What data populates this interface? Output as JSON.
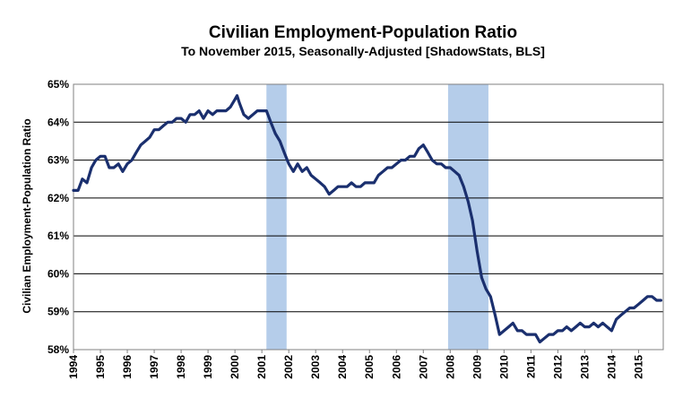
{
  "chart_data": {
    "type": "line",
    "title": "Civilian Employment-Population  Ratio",
    "subtitle": "To November 2015, Seasonally-Adjusted [ShadowStats, BLS]",
    "ylabel": "Civilian Employment-Population  Ratio",
    "xlabel": "",
    "xlim": [
      1994.0,
      2015.917
    ],
    "ylim": [
      58,
      65
    ],
    "y_ticks": [
      {
        "value": 58,
        "label": "58%"
      },
      {
        "value": 59,
        "label": "59%"
      },
      {
        "value": 60,
        "label": "60%"
      },
      {
        "value": 61,
        "label": "61%"
      },
      {
        "value": 62,
        "label": "62%"
      },
      {
        "value": 63,
        "label": "63%"
      },
      {
        "value": 64,
        "label": "64%"
      },
      {
        "value": 65,
        "label": "65%"
      }
    ],
    "x_ticks": [
      "1994",
      "1995",
      "1996",
      "1997",
      "1998",
      "1999",
      "2000",
      "2001",
      "2002",
      "2003",
      "2004",
      "2005",
      "2006",
      "2007",
      "2008",
      "2009",
      "2010",
      "2011",
      "2012",
      "2013",
      "2014",
      "2015"
    ],
    "grid": {
      "horizontal": true,
      "vertical": false
    },
    "legend": "none",
    "recessions": [
      {
        "start": 2001.17,
        "end": 2001.92
      },
      {
        "start": 2007.92,
        "end": 2009.42
      }
    ],
    "colors": {
      "line": "#1a2f6e",
      "recession": "#a8c4e6",
      "grid": "#000000",
      "frame": "#808080"
    },
    "series": [
      {
        "x": [
          1994.0,
          1994.17,
          1994.33,
          1994.5,
          1994.67,
          1994.83,
          1995.0,
          1995.17,
          1995.33,
          1995.5,
          1995.67,
          1995.83,
          1996.0,
          1996.17,
          1996.33,
          1996.5,
          1996.67,
          1996.83,
          1997.0,
          1997.17,
          1997.33,
          1997.5,
          1997.67,
          1997.83,
          1998.0,
          1998.17,
          1998.33,
          1998.5,
          1998.67,
          1998.83,
          1999.0,
          1999.17,
          1999.33,
          1999.5,
          1999.67,
          1999.83,
          2000.0,
          2000.08,
          2000.17,
          2000.33,
          2000.5,
          2000.67,
          2000.83,
          2001.0,
          2001.17,
          2001.33,
          2001.5,
          2001.67,
          2001.83,
          2002.0,
          2002.17,
          2002.33,
          2002.5,
          2002.67,
          2002.83,
          2003.0,
          2003.17,
          2003.33,
          2003.5,
          2003.67,
          2003.83,
          2004.0,
          2004.17,
          2004.33,
          2004.5,
          2004.67,
          2004.83,
          2005.0,
          2005.17,
          2005.33,
          2005.5,
          2005.67,
          2005.83,
          2006.0,
          2006.17,
          2006.33,
          2006.5,
          2006.67,
          2006.83,
          2007.0,
          2007.17,
          2007.33,
          2007.5,
          2007.67,
          2007.83,
          2008.0,
          2008.17,
          2008.33,
          2008.5,
          2008.67,
          2008.83,
          2009.0,
          2009.17,
          2009.33,
          2009.5,
          2009.67,
          2009.83,
          2010.0,
          2010.17,
          2010.33,
          2010.5,
          2010.67,
          2010.83,
          2011.0,
          2011.17,
          2011.33,
          2011.5,
          2011.67,
          2011.83,
          2012.0,
          2012.17,
          2012.33,
          2012.5,
          2012.67,
          2012.83,
          2013.0,
          2013.17,
          2013.33,
          2013.5,
          2013.67,
          2013.83,
          2014.0,
          2014.17,
          2014.33,
          2014.5,
          2014.67,
          2014.83,
          2015.0,
          2015.17,
          2015.33,
          2015.5,
          2015.67,
          2015.83
        ],
        "values": [
          62.2,
          62.2,
          62.5,
          62.4,
          62.8,
          63.0,
          63.1,
          63.1,
          62.8,
          62.8,
          62.9,
          62.7,
          62.9,
          63.0,
          63.2,
          63.4,
          63.5,
          63.6,
          63.8,
          63.8,
          63.9,
          64.0,
          64.0,
          64.1,
          64.1,
          64.0,
          64.2,
          64.2,
          64.3,
          64.1,
          64.3,
          64.2,
          64.3,
          64.3,
          64.3,
          64.4,
          64.6,
          64.7,
          64.5,
          64.2,
          64.1,
          64.2,
          64.3,
          64.3,
          64.3,
          64.0,
          63.7,
          63.5,
          63.2,
          62.9,
          62.7,
          62.9,
          62.7,
          62.8,
          62.6,
          62.5,
          62.4,
          62.3,
          62.1,
          62.2,
          62.3,
          62.3,
          62.3,
          62.4,
          62.3,
          62.3,
          62.4,
          62.4,
          62.4,
          62.6,
          62.7,
          62.8,
          62.8,
          62.9,
          63.0,
          63.0,
          63.1,
          63.1,
          63.3,
          63.4,
          63.2,
          63.0,
          62.9,
          62.9,
          62.8,
          62.8,
          62.7,
          62.6,
          62.3,
          61.9,
          61.4,
          60.6,
          59.9,
          59.6,
          59.4,
          58.9,
          58.4,
          58.5,
          58.6,
          58.7,
          58.5,
          58.5,
          58.4,
          58.4,
          58.4,
          58.2,
          58.3,
          58.4,
          58.4,
          58.5,
          58.5,
          58.6,
          58.5,
          58.6,
          58.7,
          58.6,
          58.6,
          58.7,
          58.6,
          58.7,
          58.6,
          58.5,
          58.8,
          58.9,
          59.0,
          59.1,
          59.1,
          59.2,
          59.3,
          59.4,
          59.4,
          59.3,
          59.3
        ]
      }
    ]
  }
}
